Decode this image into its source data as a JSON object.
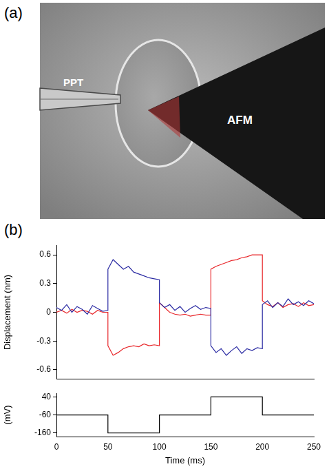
{
  "panel_a": {
    "label": "(a)",
    "image_labels": [
      "PPT",
      "AFM"
    ]
  },
  "panel_b_label": "(b)",
  "chart_data": [
    {
      "type": "line",
      "y_label": "Displacement (nm)",
      "grid": false,
      "tick_labels": "y",
      "xlim": [
        0,
        250
      ],
      "xticks": [
        0,
        50,
        100,
        150,
        200,
        250
      ],
      "ylim": [
        -0.7,
        0.7
      ],
      "yticks": [
        -0.6,
        -0.3,
        0,
        0.3,
        0.6
      ],
      "x": [
        0,
        5,
        10,
        15,
        20,
        25,
        30,
        35,
        40,
        45,
        50,
        50,
        55,
        60,
        65,
        70,
        75,
        80,
        85,
        90,
        95,
        100,
        100,
        105,
        110,
        115,
        120,
        125,
        130,
        135,
        140,
        145,
        150,
        150,
        155,
        160,
        165,
        170,
        175,
        180,
        185,
        190,
        195,
        200,
        200,
        205,
        210,
        215,
        220,
        225,
        230,
        235,
        240,
        245,
        250
      ],
      "series": [
        {
          "color": "#2b2ba3",
          "values": [
            0.05,
            0.02,
            0.08,
            0.0,
            0.06,
            0.03,
            -0.02,
            0.07,
            0.04,
            0.01,
            0.02,
            0.45,
            0.55,
            0.5,
            0.45,
            0.48,
            0.42,
            0.4,
            0.38,
            0.36,
            0.35,
            0.34,
            0.1,
            0.05,
            0.08,
            0.02,
            0.06,
            0.0,
            0.04,
            0.07,
            0.03,
            0.05,
            0.04,
            -0.35,
            -0.42,
            -0.38,
            -0.45,
            -0.4,
            -0.36,
            -0.43,
            -0.38,
            -0.4,
            -0.37,
            -0.38,
            0.08,
            0.12,
            0.05,
            0.1,
            0.06,
            0.14,
            0.08,
            0.11,
            0.07,
            0.12,
            0.09
          ]
        },
        {
          "color": "#e8262a",
          "values": [
            0.0,
            0.02,
            -0.01,
            0.03,
            0.0,
            0.02,
            0.01,
            -0.02,
            0.02,
            0.0,
            0.0,
            -0.35,
            -0.45,
            -0.42,
            -0.38,
            -0.36,
            -0.35,
            -0.36,
            -0.33,
            -0.35,
            -0.34,
            -0.35,
            0.1,
            0.05,
            0.0,
            -0.02,
            -0.03,
            -0.02,
            -0.04,
            -0.03,
            -0.02,
            -0.03,
            -0.03,
            0.45,
            0.48,
            0.5,
            0.52,
            0.54,
            0.55,
            0.57,
            0.58,
            0.6,
            0.6,
            0.6,
            0.12,
            0.08,
            0.06,
            0.1,
            0.05,
            0.08,
            0.09,
            0.06,
            0.1,
            0.07,
            0.08
          ]
        }
      ]
    },
    {
      "type": "line",
      "x_label": "Time (ms)",
      "y_label": "(mV)",
      "grid": false,
      "xlim": [
        0,
        250
      ],
      "xticks": [
        0,
        50,
        100,
        150,
        200,
        250
      ],
      "ylim": [
        -180,
        60
      ],
      "yticks": [
        -160,
        -60,
        40
      ],
      "x": [
        0,
        50,
        50,
        100,
        100,
        150,
        150,
        200,
        200,
        250
      ],
      "series": [
        {
          "color": "#000000",
          "values": [
            -60,
            -60,
            -160,
            -160,
            -60,
            -60,
            40,
            40,
            -60,
            -60
          ]
        }
      ]
    }
  ]
}
